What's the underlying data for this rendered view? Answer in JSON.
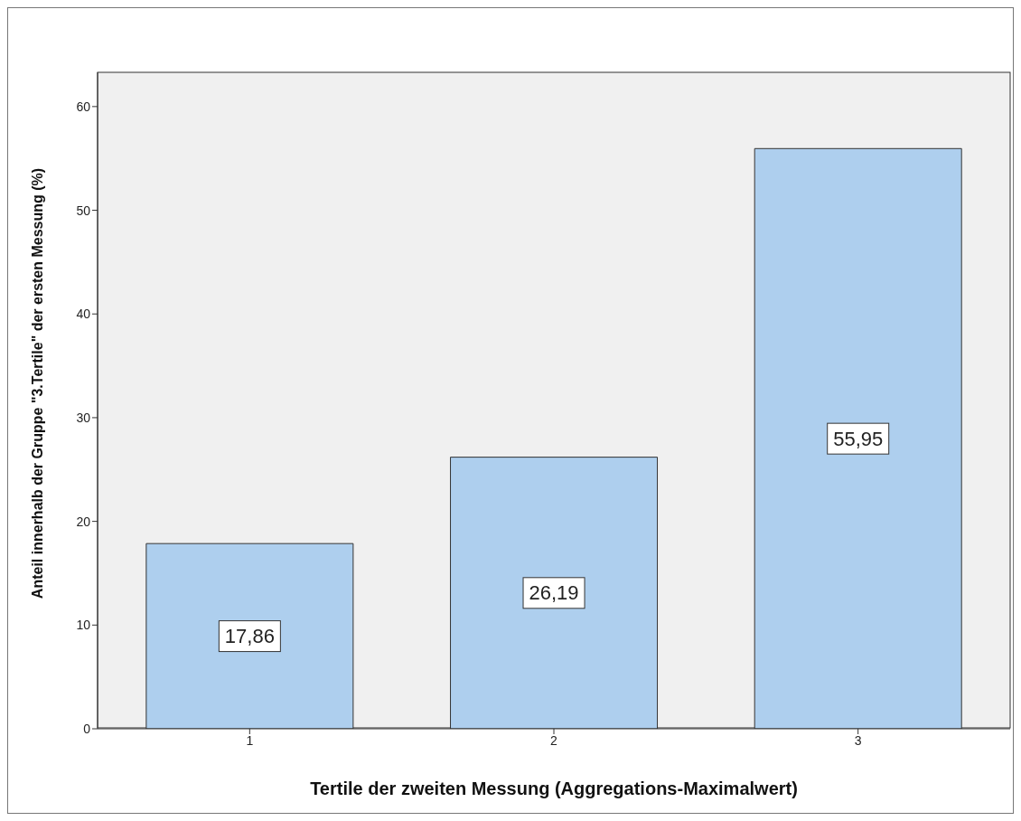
{
  "chart_data": {
    "type": "bar",
    "categories": [
      "1",
      "2",
      "3"
    ],
    "values": [
      17.86,
      26.19,
      55.95
    ],
    "value_labels": [
      "17,86",
      "26,19",
      "55,95"
    ],
    "color": "#aecfee",
    "xlabel": "Tertile der zweiten Messung (Aggregations-Maximalwert)",
    "ylabel": "Anteil innerhalb der Gruppe \"3.Tertile\" der ersten Messung (%)",
    "ylim": [
      0,
      63.3
    ],
    "yticks": [
      0,
      10,
      20,
      30,
      40,
      50,
      60
    ],
    "grid": false,
    "legend": false
  }
}
